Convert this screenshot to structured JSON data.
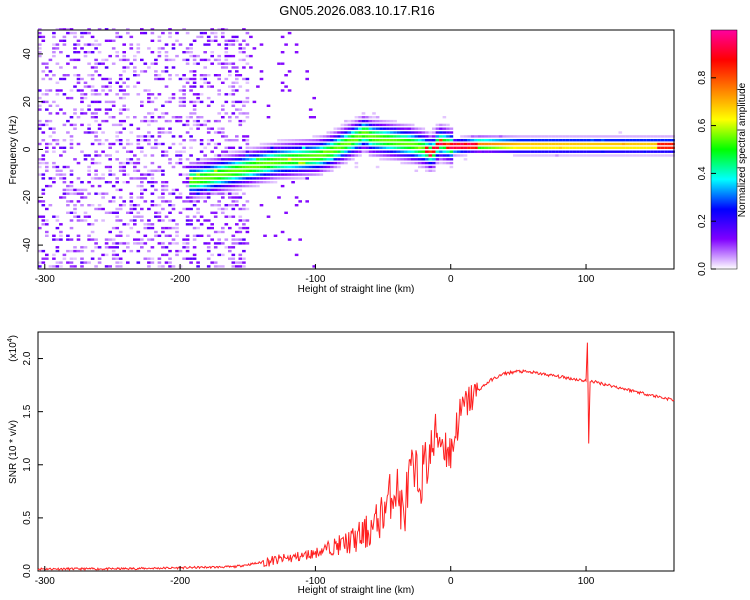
{
  "title": "GN05.2026.083.10.17.R16",
  "chart_data": [
    {
      "type": "heatmap",
      "xlabel": "Height of straight line (km)",
      "ylabel": "Frequency (Hz)",
      "xlim": [
        -305,
        165
      ],
      "ylim": [
        -50,
        50
      ],
      "xticks": [
        -300,
        -200,
        -100,
        0,
        100
      ],
      "yticks": [
        -40,
        -20,
        0,
        20,
        40
      ],
      "colorbar": {
        "label": "Normalized spectral amplitude",
        "range": [
          0.0,
          1.0
        ],
        "ticks": [
          0.0,
          0.2,
          0.4,
          0.6,
          0.8
        ],
        "colormap": [
          "#ffffff",
          "#8000ff",
          "#0000ff",
          "#00ffff",
          "#00ff00",
          "#ffff00",
          "#ff8000",
          "#ff0000",
          "#ff00a0"
        ]
      },
      "ridge": {
        "x": [
          -190,
          -175,
          -160,
          -145,
          -130,
          -115,
          -100,
          -90,
          -80,
          -70,
          -65,
          -60,
          -50,
          -40,
          -30,
          -20,
          -15,
          -10,
          0,
          20,
          50,
          80,
          100,
          130,
          160
        ],
        "frequency": [
          -14,
          -12,
          -10,
          -8,
          -6,
          -5,
          -4,
          -2,
          1,
          4,
          6,
          4,
          3,
          2,
          1,
          -1,
          -3,
          2,
          0,
          1,
          0.5,
          0.5,
          0.5,
          0.5,
          0.5
        ]
      }
    },
    {
      "type": "line",
      "xlabel": "Height of straight line (km)",
      "ylabel": "SNR (10 * v/v)",
      "scale_note": "(x10",
      "scale_exp": "4",
      "scale_close": ")",
      "xlim": [
        -305,
        165
      ],
      "ylim": [
        0.0,
        2.25
      ],
      "xticks": [
        -300,
        -200,
        -100,
        0,
        100
      ],
      "yticks": [
        0.0,
        0.5,
        1.0,
        1.5,
        2.0
      ],
      "yticklabels": [
        "0.0",
        "0.5",
        "1.0",
        "1.5",
        "2.0"
      ],
      "series": [
        {
          "color": "#ff2020",
          "x": [
            -305,
            -250,
            -200,
            -160,
            -150,
            -130,
            -110,
            -100,
            -90,
            -80,
            -70,
            -60,
            -55,
            -50,
            -45,
            -40,
            -35,
            -30,
            -25,
            -20,
            -15,
            -10,
            -5,
            0,
            5,
            10,
            20,
            30,
            40,
            50,
            60,
            70,
            80,
            90,
            100,
            101,
            102,
            103,
            110,
            120,
            130,
            140,
            150,
            165
          ],
          "values": [
            0.02,
            0.02,
            0.03,
            0.04,
            0.06,
            0.1,
            0.14,
            0.17,
            0.22,
            0.25,
            0.3,
            0.38,
            0.45,
            0.55,
            0.7,
            0.8,
            0.5,
            0.9,
            0.85,
            0.95,
            1.1,
            1.3,
            1.2,
            1.1,
            1.4,
            1.55,
            1.7,
            1.8,
            1.86,
            1.88,
            1.87,
            1.85,
            1.83,
            1.81,
            1.79,
            2.15,
            1.2,
            1.79,
            1.77,
            1.74,
            1.71,
            1.68,
            1.65,
            1.61
          ]
        }
      ]
    }
  ]
}
